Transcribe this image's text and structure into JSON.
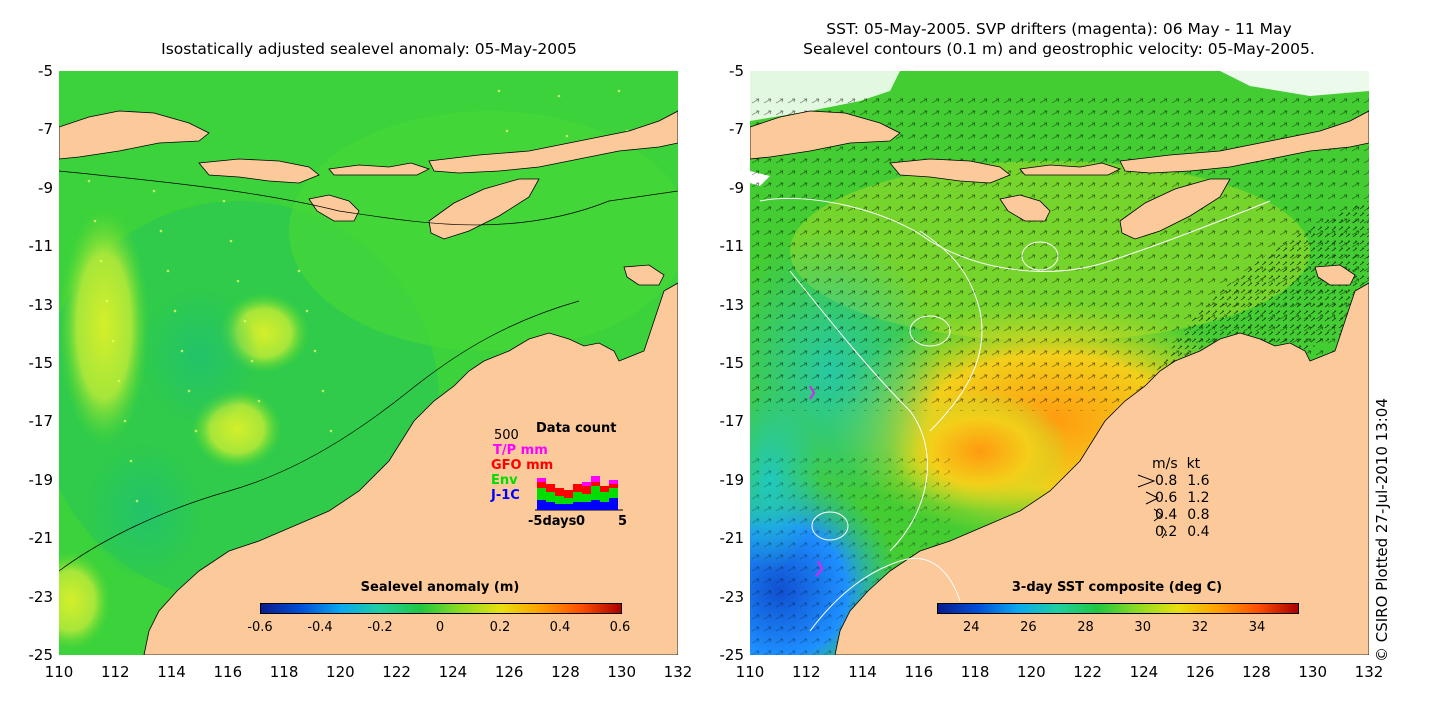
{
  "left": {
    "title": "Isostatically adjusted sealevel anomaly: 05-May-2005",
    "colorbar": {
      "title": "Sealevel anomaly (m)",
      "ticks": [
        "-0.6",
        "-0.4",
        "-0.2",
        "0",
        "0.2",
        "0.4",
        "0.6"
      ]
    },
    "data_count": {
      "title": "Data count",
      "max_label": "500",
      "series": [
        {
          "name": "T/P mm",
          "color": "#ff00ff"
        },
        {
          "name": "GFO mm",
          "color": "#ff0000"
        },
        {
          "name": "Env",
          "color": "#00dd00"
        },
        {
          "name": "J-1C",
          "color": "#0000ff"
        }
      ],
      "x_labels": [
        "-5days",
        "0",
        "5"
      ]
    }
  },
  "right": {
    "title_line1": "SST: 05-May-2005. SVP drifters (magenta): 06 May - 11 May",
    "title_line2": "Sealevel contours (0.1 m) and geostrophic velocity: 05-May-2005.",
    "colorbar": {
      "title": "3-day SST composite (deg C)",
      "ticks": [
        "24",
        "26",
        "28",
        "30",
        "32",
        "34"
      ]
    },
    "velocity_legend": {
      "header": [
        "m/s",
        "kt"
      ],
      "rows": [
        [
          "0.8",
          "1.6"
        ],
        [
          "0.6",
          "1.2"
        ],
        [
          "0.4",
          "0.8"
        ],
        [
          "0.2",
          "0.4"
        ]
      ]
    }
  },
  "axes": {
    "y_labels": [
      "-5",
      "-7",
      "-9",
      "-11",
      "-13",
      "-15",
      "-17",
      "-19",
      "-21",
      "-23",
      "-25"
    ],
    "x_labels": [
      "110",
      "112",
      "114",
      "116",
      "118",
      "120",
      "122",
      "124",
      "126",
      "128",
      "130",
      "132"
    ]
  },
  "credit": "© CSIRO Plotted 27-Jul-2010 13:04",
  "colors": {
    "land": "#fbc99a",
    "ocean_green": "#22cc22",
    "warm": "#ffa500",
    "cool": "#1e8fff"
  }
}
